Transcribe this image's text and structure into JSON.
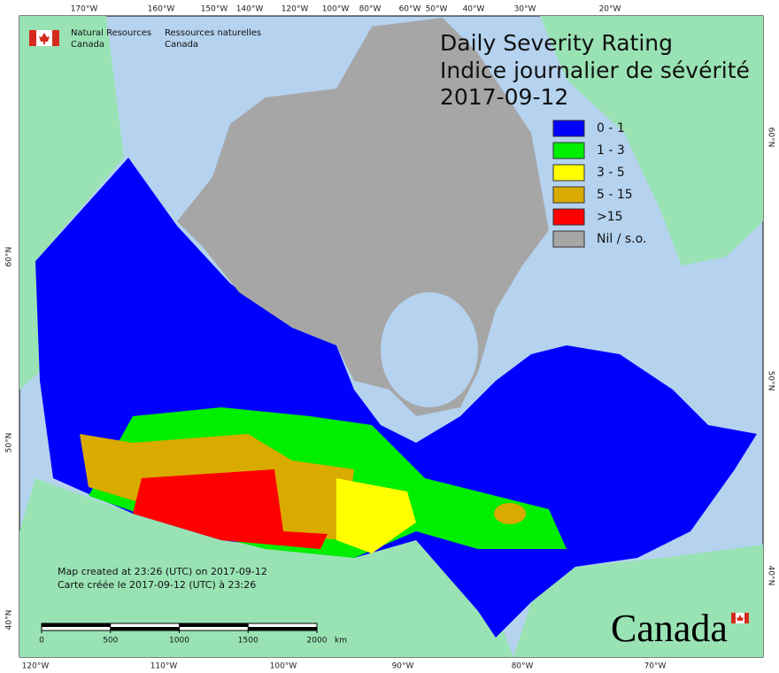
{
  "logo": {
    "en_line1": "Natural Resources",
    "en_line2": "Canada",
    "fr_line1": "Ressources naturelles",
    "fr_line2": "Canada"
  },
  "title": {
    "line1": "Daily Severity Rating",
    "line2": "Indice journalier de sévérité",
    "date": "2017-09-12"
  },
  "legend": [
    {
      "label": "0 - 1",
      "color": "#0000ff"
    },
    {
      "label": "1 - 3",
      "color": "#00ee00"
    },
    {
      "label": "3 - 5",
      "color": "#ffff00"
    },
    {
      "label": "5 - 15",
      "color": "#d9aa00"
    },
    {
      "label": ">15",
      "color": "#ff0000"
    },
    {
      "label": "Nil / s.o.",
      "color": "#a6a6a6"
    }
  ],
  "graticule": {
    "top": [
      "170°W",
      "160°W",
      "150°W",
      "140°W",
      "120°W",
      "100°W",
      "80°W",
      "60°W",
      "50°W",
      "40°W",
      "30°W",
      "20°W"
    ],
    "bottom": [
      "120°W",
      "110°W",
      "100°W",
      "90°W",
      "80°W",
      "70°W"
    ],
    "left": [
      "60°N",
      "50°N",
      "40°N"
    ],
    "right": [
      "60°N",
      "50°N",
      "40°N"
    ]
  },
  "credit": {
    "line1": "Map created at 23:26 (UTC) on 2017-09-12",
    "line2": "Carte créée le 2017-09-12 (UTC) à 23:26"
  },
  "scale": {
    "ticks": [
      0,
      500,
      1000,
      1500,
      2000
    ],
    "unit": "km"
  },
  "wordmark": "Canada"
}
